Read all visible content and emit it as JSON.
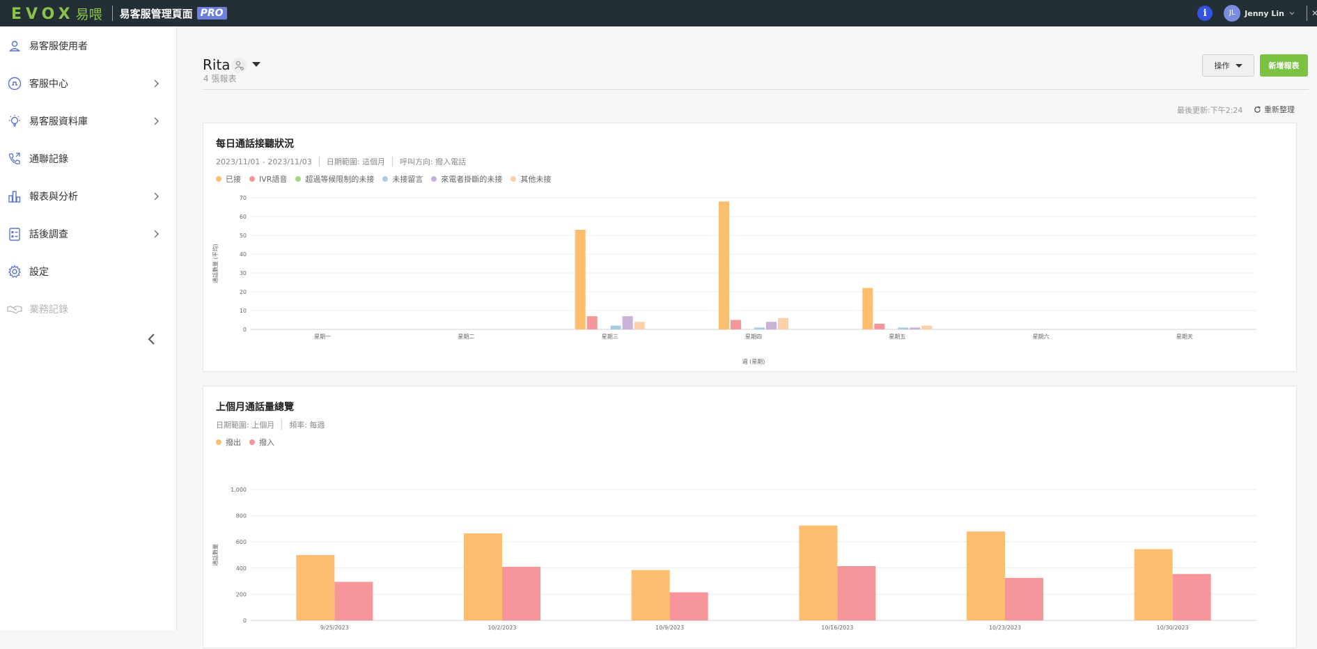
{
  "header": {
    "logo_text": "EVOX",
    "logo_cn": "易喂",
    "app_title": "易客服管理頁面",
    "badge": "PRO",
    "user_initials": "JL",
    "user_name": "Jenny Lin"
  },
  "sidebar": {
    "items": [
      {
        "label": "易客服使用者",
        "icon": "user-icon",
        "has_chevron": false,
        "muted": false
      },
      {
        "label": "客服中心",
        "icon": "headset-icon",
        "has_chevron": true,
        "muted": false
      },
      {
        "label": "易客服資料庫",
        "icon": "lightbulb-icon",
        "has_chevron": true,
        "muted": false
      },
      {
        "label": "通聯記錄",
        "icon": "phone-icon",
        "has_chevron": false,
        "muted": false
      },
      {
        "label": "報表與分析",
        "icon": "bar-chart-icon",
        "has_chevron": true,
        "muted": false
      },
      {
        "label": "話後調查",
        "icon": "survey-icon",
        "has_chevron": true,
        "muted": false
      },
      {
        "label": "設定",
        "icon": "gear-icon",
        "has_chevron": false,
        "muted": false
      },
      {
        "label": "業務記錄",
        "icon": "handshake-icon",
        "has_chevron": false,
        "muted": true
      }
    ]
  },
  "page": {
    "title": "Rita",
    "subtitle": "4 張報表",
    "actions_label": "操作",
    "new_report_label": "新增報表",
    "last_updated": "最後更新:下午2:24",
    "refresh_label": "重新整理"
  },
  "cards": [
    {
      "title": "每日通話接聽狀況",
      "meta": [
        "2023/11/01 - 2023/11/03",
        "日期範圍: 這個月",
        "呼叫方向: 撥入電話"
      ]
    },
    {
      "title": "上個月通話量總覽",
      "meta": [
        "日期範圍: 上個月",
        "頻率: 每週"
      ]
    }
  ],
  "chart_data": [
    {
      "type": "bar",
      "title": "每日通話接聽狀況",
      "xlabel": "週 (星期)",
      "ylabel": "通話數量 (平均)",
      "ylim": [
        0,
        70
      ],
      "yticks": [
        0,
        10,
        20,
        30,
        40,
        50,
        60,
        70
      ],
      "categories": [
        "星期一",
        "星期二",
        "星期三",
        "星期四",
        "星期五",
        "星期六",
        "星期天"
      ],
      "legend_position": "top-left",
      "grid": true,
      "series": [
        {
          "name": "已接",
          "color": "#fdbf6f",
          "values": [
            0,
            0,
            53,
            68,
            22,
            0,
            0
          ]
        },
        {
          "name": "IVR語音",
          "color": "#f7969a",
          "values": [
            0,
            0,
            7,
            5,
            3,
            0,
            0
          ]
        },
        {
          "name": "超過等候限制的未接",
          "color": "#a5d87a",
          "values": [
            0,
            0,
            0,
            0,
            0,
            0,
            0
          ]
        },
        {
          "name": "未接留言",
          "color": "#a6cee3",
          "values": [
            0,
            0,
            2,
            1,
            1,
            0,
            0
          ]
        },
        {
          "name": "來電者掛斷的未接",
          "color": "#cab2d6",
          "values": [
            0,
            0,
            7,
            4,
            1,
            0,
            0
          ]
        },
        {
          "name": "其他未接",
          "color": "#fdd0a8",
          "values": [
            0,
            0,
            4,
            6,
            2,
            0,
            0
          ]
        }
      ]
    },
    {
      "type": "bar",
      "title": "上個月通話量總覽",
      "xlabel": "",
      "ylabel": "通話數量",
      "ylim": [
        0,
        1000
      ],
      "yticks": [
        0,
        200,
        400,
        600,
        800,
        1000
      ],
      "ytick_labels": [
        "0",
        "200",
        "400",
        "600",
        "800",
        "1,000"
      ],
      "categories": [
        "9/25/2023",
        "10/2/2023",
        "10/9/2023",
        "10/16/2023",
        "10/23/2023",
        "10/30/2023"
      ],
      "legend_position": "top-left",
      "grid": true,
      "series": [
        {
          "name": "撥出",
          "color": "#fdbf6f",
          "values": [
            500,
            665,
            385,
            725,
            680,
            545
          ]
        },
        {
          "name": "撥入",
          "color": "#f7969a",
          "values": [
            295,
            410,
            215,
            415,
            325,
            355
          ]
        }
      ]
    }
  ]
}
